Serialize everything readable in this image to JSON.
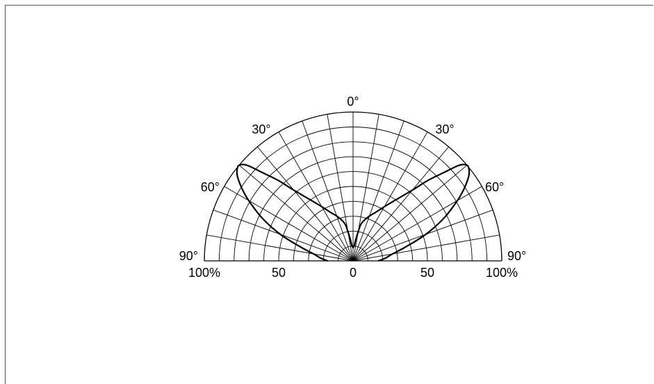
{
  "chart_data": {
    "type": "polar",
    "title": "",
    "radial_axis": {
      "unit": "%",
      "range": [
        0,
        100
      ],
      "rings": [
        10,
        20,
        30,
        40,
        50,
        60,
        70,
        80,
        90,
        100
      ],
      "tick_labels": [
        {
          "key": "left100",
          "text": "100%"
        },
        {
          "key": "left50",
          "text": "50"
        },
        {
          "key": "center",
          "text": "0"
        },
        {
          "key": "right50",
          "text": "50"
        },
        {
          "key": "right100",
          "text": "100%"
        }
      ]
    },
    "angular_axis": {
      "unit": "°",
      "range": [
        -90,
        90
      ],
      "spoke_step": 10,
      "tick_labels": [
        {
          "key": "top0",
          "text": "0°"
        },
        {
          "key": "left30",
          "text": "30°"
        },
        {
          "key": "right30",
          "text": "30°"
        },
        {
          "key": "left60",
          "text": "60°"
        },
        {
          "key": "right60",
          "text": "60°"
        },
        {
          "key": "left90",
          "text": "90°"
        },
        {
          "key": "right90",
          "text": "90°"
        }
      ]
    },
    "grid": true,
    "series": [
      {
        "points": [
          {
            "angle": -90,
            "r": 17
          },
          {
            "angle": -85,
            "r": 22
          },
          {
            "angle": -80,
            "r": 27
          },
          {
            "angle": -75,
            "r": 37
          },
          {
            "angle": -70,
            "r": 52
          },
          {
            "angle": -65,
            "r": 67
          },
          {
            "angle": -60,
            "r": 81
          },
          {
            "angle": -57,
            "r": 89
          },
          {
            "angle": -54,
            "r": 96
          },
          {
            "angle": -52,
            "r": 99
          },
          {
            "angle": -50,
            "r": 100
          },
          {
            "angle": -48,
            "r": 96
          },
          {
            "angle": -46,
            "r": 86
          },
          {
            "angle": -43,
            "r": 74
          },
          {
            "angle": -40,
            "r": 62
          },
          {
            "angle": -35,
            "r": 50
          },
          {
            "angle": -30,
            "r": 42
          },
          {
            "angle": -25,
            "r": 36
          },
          {
            "angle": -20,
            "r": 32
          },
          {
            "angle": -15,
            "r": 28
          },
          {
            "angle": -12,
            "r": 25
          },
          {
            "angle": -10,
            "r": 20
          },
          {
            "angle": -7,
            "r": 14
          },
          {
            "angle": -4,
            "r": 10
          },
          {
            "angle": 0,
            "r": 9
          },
          {
            "angle": 4,
            "r": 10
          },
          {
            "angle": 7,
            "r": 14
          },
          {
            "angle": 10,
            "r": 20
          },
          {
            "angle": 12,
            "r": 25
          },
          {
            "angle": 15,
            "r": 28
          },
          {
            "angle": 20,
            "r": 32
          },
          {
            "angle": 25,
            "r": 36
          },
          {
            "angle": 30,
            "r": 42
          },
          {
            "angle": 35,
            "r": 50
          },
          {
            "angle": 40,
            "r": 62
          },
          {
            "angle": 43,
            "r": 74
          },
          {
            "angle": 46,
            "r": 86
          },
          {
            "angle": 48,
            "r": 96
          },
          {
            "angle": 50,
            "r": 100
          },
          {
            "angle": 52,
            "r": 99
          },
          {
            "angle": 54,
            "r": 96
          },
          {
            "angle": 57,
            "r": 89
          },
          {
            "angle": 60,
            "r": 81
          },
          {
            "angle": 65,
            "r": 67
          },
          {
            "angle": 70,
            "r": 52
          },
          {
            "angle": 75,
            "r": 37
          },
          {
            "angle": 80,
            "r": 27
          },
          {
            "angle": 85,
            "r": 22
          },
          {
            "angle": 90,
            "r": 17
          }
        ]
      }
    ]
  }
}
